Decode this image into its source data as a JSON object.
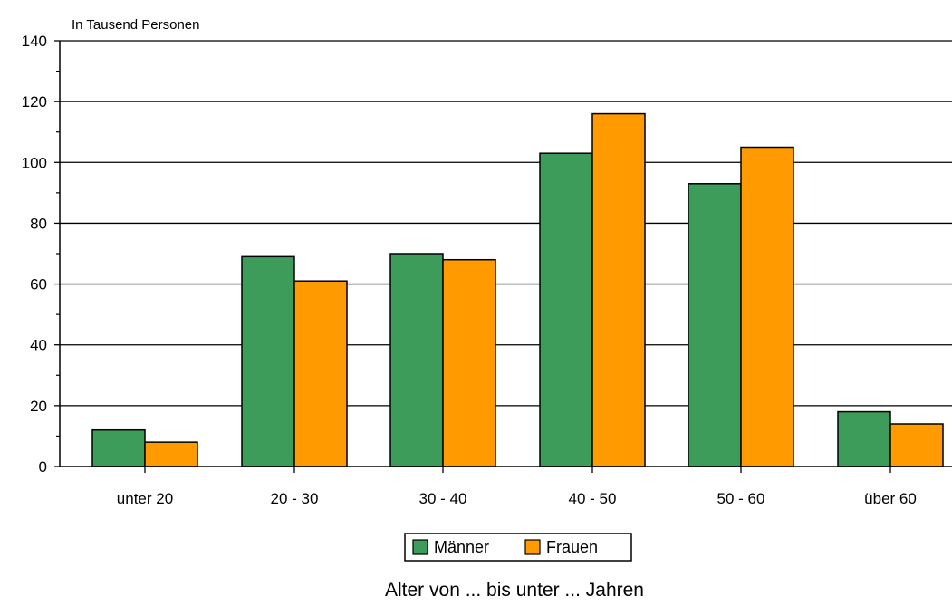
{
  "chart_data": {
    "type": "bar",
    "unit_label": "In Tausend Personen",
    "xlabel": "Alter von ... bis unter ... Jahren",
    "ylabel": "",
    "ylim": [
      0,
      140
    ],
    "yticks": [
      0,
      20,
      40,
      60,
      80,
      100,
      120,
      140
    ],
    "grid": true,
    "legend_position": "bottom-center",
    "categories": [
      "unter 20",
      "20 - 30",
      "30 - 40",
      "40 - 50",
      "50 - 60",
      "über 60"
    ],
    "series": [
      {
        "name": "Männer",
        "color": "#3d9c5a",
        "values": [
          12,
          69,
          70,
          103,
          93,
          18
        ]
      },
      {
        "name": "Frauen",
        "color": "#ff9a00",
        "values": [
          8,
          61,
          68,
          116,
          105,
          14
        ]
      }
    ]
  }
}
